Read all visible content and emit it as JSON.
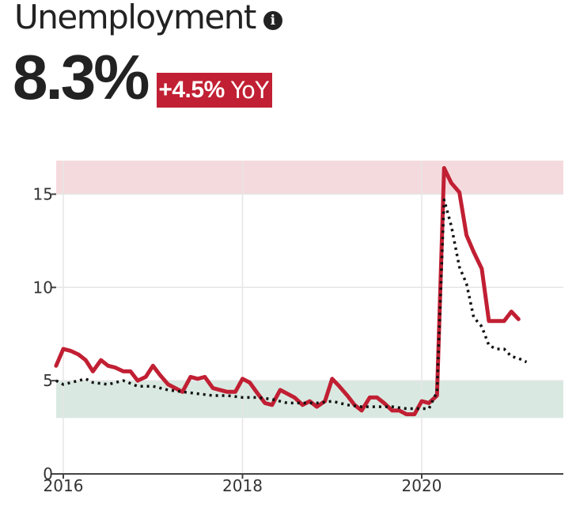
{
  "header": {
    "title": "Unemployment",
    "info_icon": "info-icon",
    "value": "8.3%",
    "yoy_change": "+4.5%",
    "yoy_unit": "YoY"
  },
  "colors": {
    "primary_line": "#c11f33",
    "comparison_line": "#111111",
    "bad_band": "#f5dadd",
    "good_band": "#d9e9e1",
    "badge": "#c11f33",
    "grid": "#e6e6e6"
  },
  "chart_data": {
    "type": "line",
    "title": "",
    "xlabel": "",
    "ylabel": "",
    "xlim": [
      2015.92,
      2021.5
    ],
    "ylim": [
      0,
      16.8
    ],
    "x_ticks": [
      2016,
      2018,
      2020
    ],
    "y_ticks": [
      0,
      5,
      10,
      15
    ],
    "grid": true,
    "legend": "none",
    "bands": [
      {
        "name": "high",
        "y_range": [
          15,
          16.8
        ]
      },
      {
        "name": "low",
        "y_range": [
          3,
          5
        ]
      }
    ],
    "series": [
      {
        "style": "solid",
        "x": [
          2015.92,
          2016.0,
          2016.08,
          2016.17,
          2016.25,
          2016.33,
          2016.42,
          2016.5,
          2016.58,
          2016.67,
          2016.75,
          2016.83,
          2016.92,
          2017.0,
          2017.08,
          2017.17,
          2017.25,
          2017.33,
          2017.42,
          2017.5,
          2017.58,
          2017.67,
          2017.75,
          2017.83,
          2017.92,
          2018.0,
          2018.08,
          2018.17,
          2018.25,
          2018.33,
          2018.42,
          2018.5,
          2018.58,
          2018.67,
          2018.75,
          2018.83,
          2018.92,
          2019.0,
          2019.08,
          2019.17,
          2019.25,
          2019.33,
          2019.42,
          2019.5,
          2019.58,
          2019.67,
          2019.75,
          2019.83,
          2019.92,
          2020.0,
          2020.08,
          2020.17,
          2020.25,
          2020.33,
          2020.42,
          2020.5,
          2020.58,
          2020.67,
          2020.75,
          2020.83,
          2020.92,
          2021.0,
          2021.08
        ],
        "y": [
          5.8,
          6.7,
          6.6,
          6.4,
          6.1,
          5.5,
          6.1,
          5.8,
          5.7,
          5.5,
          5.5,
          5.0,
          5.2,
          5.8,
          5.3,
          4.8,
          4.6,
          4.4,
          5.2,
          5.1,
          5.2,
          4.6,
          4.5,
          4.4,
          4.4,
          5.1,
          4.9,
          4.3,
          3.8,
          3.7,
          4.5,
          4.3,
          4.1,
          3.7,
          3.9,
          3.6,
          3.9,
          5.1,
          4.7,
          4.2,
          3.7,
          3.4,
          4.1,
          4.1,
          3.8,
          3.4,
          3.4,
          3.2,
          3.2,
          3.9,
          3.8,
          4.2,
          16.4,
          15.6,
          15.1,
          12.8,
          11.9,
          11.0,
          8.2,
          8.2,
          8.2,
          8.7,
          8.3
        ]
      },
      {
        "style": "dotted",
        "x": [
          2015.92,
          2016.0,
          2016.17,
          2016.25,
          2016.33,
          2016.5,
          2016.58,
          2016.67,
          2016.83,
          2017.0,
          2017.17,
          2017.33,
          2017.5,
          2017.67,
          2017.83,
          2018.0,
          2018.17,
          2018.33,
          2018.5,
          2018.67,
          2018.83,
          2019.0,
          2019.17,
          2019.33,
          2019.5,
          2019.67,
          2019.83,
          2020.0,
          2020.08,
          2020.17,
          2020.25,
          2020.33,
          2020.42,
          2020.5,
          2020.58,
          2020.67,
          2020.75,
          2020.83,
          2020.92,
          2021.0,
          2021.08,
          2021.17
        ],
        "y": [
          5.0,
          4.8,
          5.0,
          5.1,
          4.9,
          4.8,
          4.9,
          5.0,
          4.7,
          4.7,
          4.5,
          4.4,
          4.3,
          4.2,
          4.2,
          4.1,
          4.1,
          4.0,
          3.8,
          3.8,
          3.8,
          3.9,
          3.7,
          3.6,
          3.6,
          3.6,
          3.5,
          3.5,
          3.5,
          4.4,
          14.7,
          13.3,
          11.1,
          10.2,
          8.4,
          7.9,
          6.9,
          6.7,
          6.7,
          6.3,
          6.2,
          6.0
        ]
      }
    ]
  }
}
